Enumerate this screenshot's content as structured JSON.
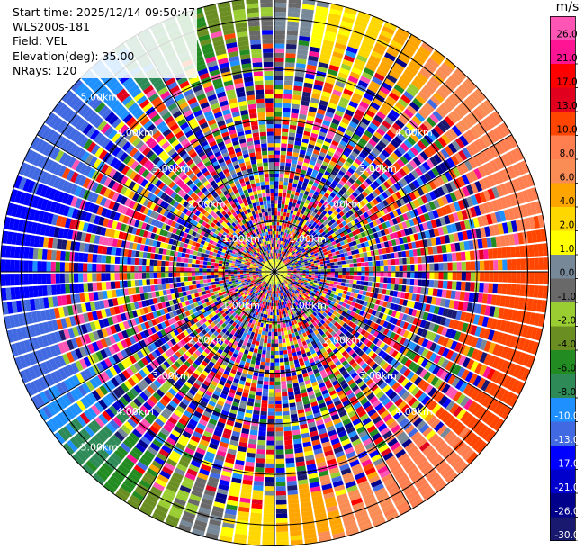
{
  "info": {
    "start_time": "Start time: 2025/12/14 09:50:47",
    "instrument": "WLS200s-181",
    "field": "Field: VEL",
    "elevation": "Elevation(deg): 35.00",
    "nrays": "NRays: 120"
  },
  "chart_data": {
    "type": "heatmap",
    "projection": "polar-ppi",
    "n_rays": 120,
    "range_rings_km": [
      1,
      2,
      3,
      4,
      5
    ],
    "range_ring_labels": [
      "1.00km",
      "2.00km",
      "3.00km",
      "4.00km",
      "5.00km"
    ],
    "colorbar": {
      "unit": "m/s",
      "tick_labels": [
        "26.0",
        "21.0",
        "17.0",
        "13.0",
        "10.0",
        "8.0",
        "6.0",
        "4.0",
        "2.0",
        "1.0",
        "0.0",
        "-1.0",
        "-2.0",
        "-4.0",
        "-6.0",
        "-8.0",
        "-10.0",
        "-13.0",
        "-17.0",
        "-21.0",
        "-26.0",
        "-30.0"
      ],
      "colors": [
        "#ff55b4",
        "#ff1493",
        "#ff0000",
        "#e1001e",
        "#ff4500",
        "#ff7f50",
        "#fa8c55",
        "#ffa500",
        "#ffd700",
        "#ffff00",
        "#778899",
        "#696969",
        "#9acd32",
        "#6b8e23",
        "#228b22",
        "#2e8b57",
        "#1e90ff",
        "#4169e1",
        "#0000ff",
        "#0000cd",
        "#00008b",
        "#191970"
      ]
    },
    "outer_ring_pattern": "positive velocities (orange/red/pink) on east side, negative velocities (blue/green) on west side; speckled noise inside"
  }
}
